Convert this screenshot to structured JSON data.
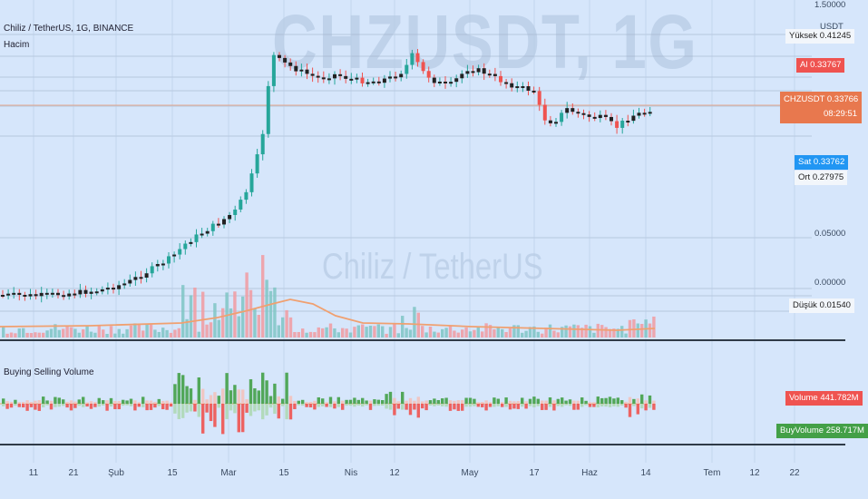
{
  "chart": {
    "watermark_symbol": "CHZUSDT, 1G",
    "watermark_name": "Chiliz / TetherUS",
    "title": "Chiliz / TetherUS, 1G, BINANCE",
    "volume_label": "Hacim",
    "indicator_label": "Buying Selling Volume"
  },
  "price_axis": {
    "ticks": [
      "1.50000",
      "0.05000",
      "0.00000"
    ],
    "currency": "USDT",
    "tags": [
      {
        "name": "Yüksek",
        "value": "0.41245",
        "color": "#f2f6fb",
        "text": "#222"
      },
      {
        "name": "Al",
        "value": "0.33767",
        "color": "#ef5350",
        "text": "#ffffff"
      },
      {
        "name": "CHZUSDT",
        "value": "0.33766",
        "countdown": "08:29:51",
        "color": "#e8784e",
        "text": "#ffffff"
      },
      {
        "name": "Sat",
        "value": "0.33762",
        "color": "#2196f3",
        "text": "#ffffff"
      },
      {
        "name": "Ort",
        "value": "0.27975",
        "color": "#f2f6fb",
        "text": "#222"
      },
      {
        "name": "Düşük",
        "value": "0.01540",
        "color": "#f2f6fb",
        "text": "#222"
      }
    ],
    "volume_tags": [
      {
        "name": "Volume",
        "value": "441.782M",
        "color": "#ef5350"
      },
      {
        "name": "BuyVolume",
        "value": "258.717M",
        "color": "#43a047"
      }
    ]
  },
  "time_axis": {
    "labels": [
      "11",
      "21",
      "Şub",
      "15",
      "Mar",
      "15",
      "Nis",
      "12",
      "May",
      "17",
      "Haz",
      "14",
      "Tem",
      "12",
      "22"
    ]
  },
  "colors": {
    "background": "#d6e6fb",
    "candle_up": "#26a69a",
    "candle_down": "#ef5350",
    "candle_body": "#222222",
    "vol_up": "#7fc4c4",
    "vol_down": "#f19aa0",
    "ma": "#f0a070",
    "buy": "#43a047",
    "sell": "#ef5350"
  }
}
